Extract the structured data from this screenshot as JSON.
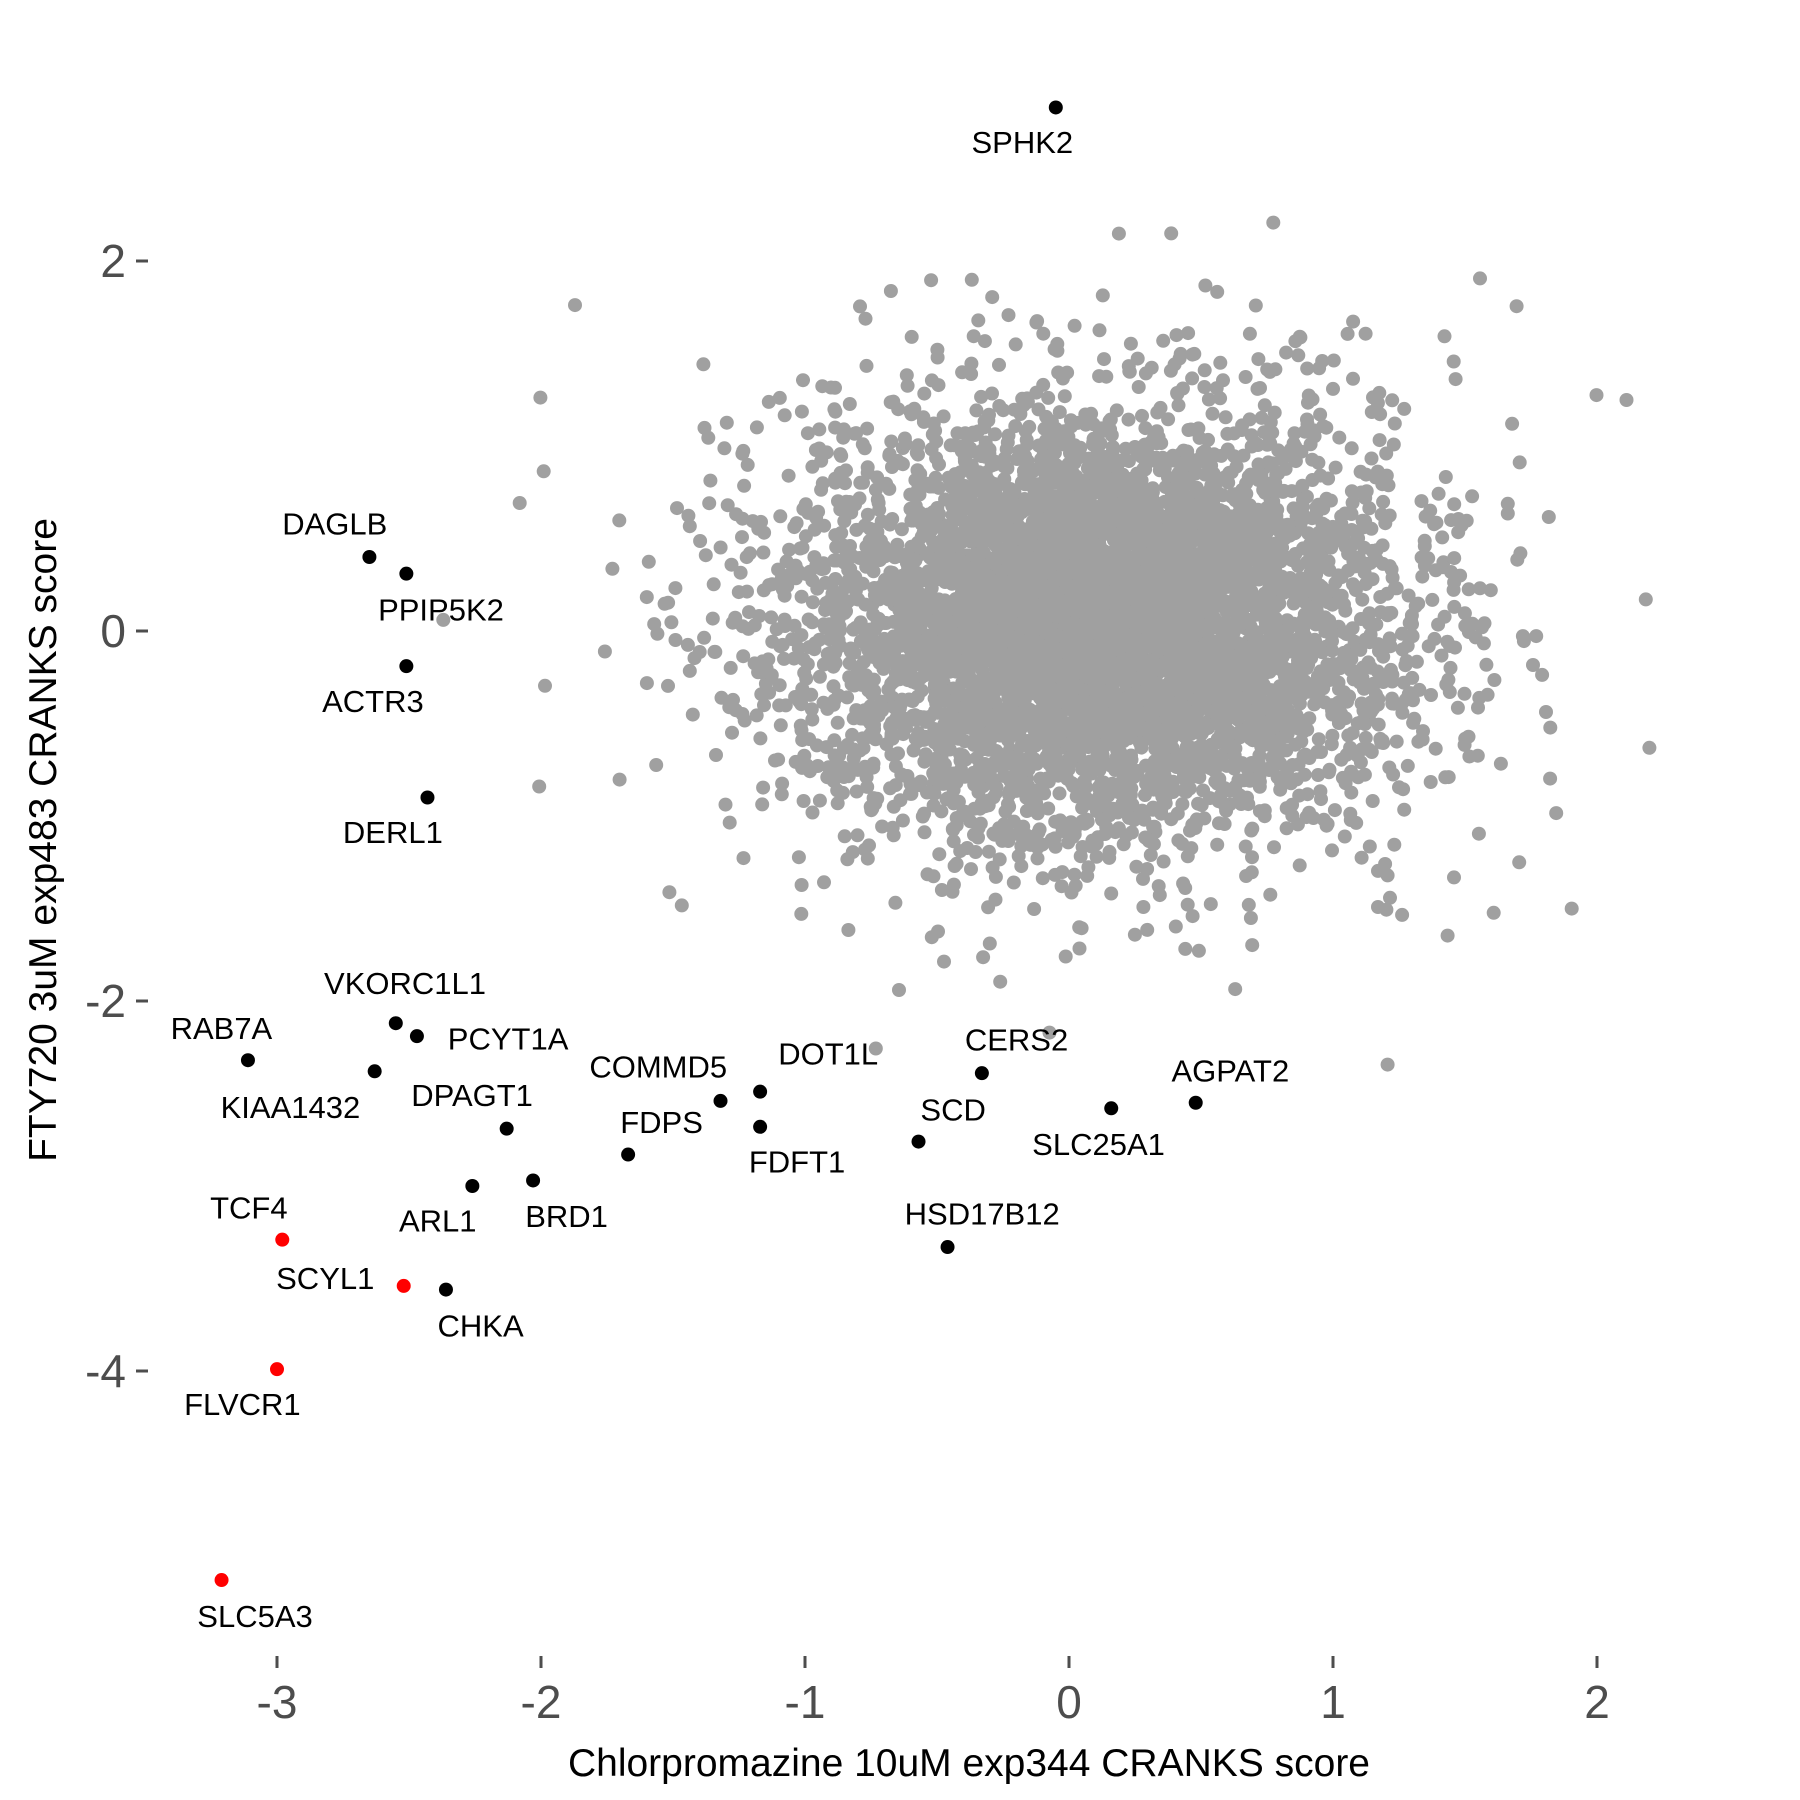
{
  "chart_data": {
    "type": "scatter",
    "title": "",
    "xlabel": "Chlorpromazine 10uM exp344 CRANKS score",
    "ylabel": "FTY720 3uM exp483 CRANKS score",
    "xlim": [
      -3.33,
      2.55
    ],
    "ylim": [
      -5.4,
      3.4
    ],
    "xticks": [
      -3,
      -2,
      -1,
      0,
      1,
      2
    ],
    "xtick_labels": [
      "-3",
      "-2",
      "-1",
      "0",
      "1",
      "2"
    ],
    "yticks": [
      2,
      0,
      -2,
      -4
    ],
    "ytick_labels": [
      "2",
      "0",
      "-2",
      "-4"
    ],
    "grid": false,
    "colors": {
      "background": "#a0a0a0",
      "highlight": "#000000",
      "hit": "#ff0000",
      "tick": "#4d4d4d"
    },
    "background_points": {
      "count": 6000,
      "x_mean": 0.12,
      "x_sd": 0.55,
      "y_mean": 0.05,
      "y_sd": 0.55,
      "color": "#a0a0a0"
    },
    "labeled_points": [
      {
        "gene": "SPHK2",
        "x": -0.05,
        "y": 2.83,
        "color": "#000000"
      },
      {
        "gene": "DAGLB",
        "x": -2.65,
        "y": 0.4,
        "color": "#000000"
      },
      {
        "gene": "PPIP5K2",
        "x": -2.51,
        "y": 0.31,
        "color": "#000000"
      },
      {
        "gene": "ACTR3",
        "x": -2.51,
        "y": -0.19,
        "color": "#000000"
      },
      {
        "gene": "DERL1",
        "x": -2.43,
        "y": -0.9,
        "color": "#000000"
      },
      {
        "gene": "VKORC1L1",
        "x": -2.55,
        "y": -2.12,
        "color": "#000000"
      },
      {
        "gene": "PCYT1A",
        "x": -2.47,
        "y": -2.19,
        "color": "#000000"
      },
      {
        "gene": "RAB7A",
        "x": -3.11,
        "y": -2.32,
        "color": "#000000"
      },
      {
        "gene": "KIAA1432",
        "x": -2.63,
        "y": -2.38,
        "color": "#000000"
      },
      {
        "gene": "DPAGT1",
        "x": -2.13,
        "y": -2.69,
        "color": "#000000"
      },
      {
        "gene": "ARL1",
        "x": -2.26,
        "y": -3.0,
        "color": "#000000"
      },
      {
        "gene": "BRD1",
        "x": -2.03,
        "y": -2.97,
        "color": "#000000"
      },
      {
        "gene": "COMMD5",
        "x": -1.32,
        "y": -2.54,
        "color": "#000000"
      },
      {
        "gene": "DOT1L",
        "x": -1.17,
        "y": -2.49,
        "color": "#000000"
      },
      {
        "gene": "FDPS",
        "x": -1.67,
        "y": -2.83,
        "color": "#000000"
      },
      {
        "gene": "FDFT1",
        "x": -1.17,
        "y": -2.68,
        "color": "#000000"
      },
      {
        "gene": "SCD",
        "x": -0.57,
        "y": -2.76,
        "color": "#000000"
      },
      {
        "gene": "CERS2",
        "x": -0.33,
        "y": -2.39,
        "color": "#000000"
      },
      {
        "gene": "SLC25A1",
        "x": 0.16,
        "y": -2.58,
        "color": "#000000"
      },
      {
        "gene": "AGPAT2",
        "x": 0.48,
        "y": -2.55,
        "color": "#000000"
      },
      {
        "gene": "HSD17B12",
        "x": -0.46,
        "y": -3.33,
        "color": "#000000"
      },
      {
        "gene": "TCF4",
        "x": -2.98,
        "y": -3.29,
        "color": "#ff0000"
      },
      {
        "gene": "SCYL1",
        "x": -2.52,
        "y": -3.54,
        "color": "#ff0000"
      },
      {
        "gene": "CHKA",
        "x": -2.36,
        "y": -3.56,
        "color": "#000000"
      },
      {
        "gene": "FLVCR1",
        "x": -3.0,
        "y": -3.99,
        "color": "#ff0000"
      },
      {
        "gene": "SLC5A3",
        "x": -3.21,
        "y": -5.13,
        "color": "#ff0000"
      }
    ]
  }
}
